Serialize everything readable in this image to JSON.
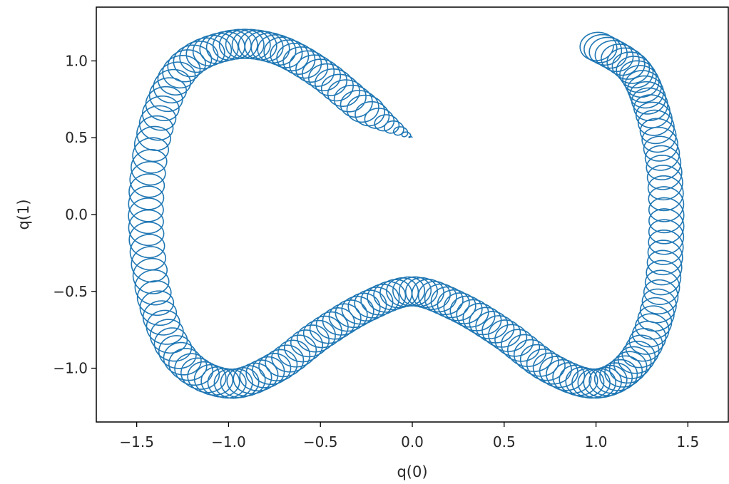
{
  "chart_data": {
    "type": "line",
    "title": "",
    "xlabel": "q(0)",
    "ylabel": "q(1)",
    "xlim": [
      -1.72,
      1.72
    ],
    "ylim": [
      -1.35,
      1.35
    ],
    "x_ticks": [
      -1.5,
      -1.0,
      -0.5,
      0.0,
      0.5,
      1.0,
      1.5
    ],
    "x_tick_labels": [
      "−1.5",
      "−1.0",
      "−0.5",
      "0.0",
      "0.5",
      "1.0",
      "1.5"
    ],
    "y_ticks": [
      -1.0,
      -0.5,
      0.0,
      0.5,
      1.0
    ],
    "y_tick_labels": [
      "−1.0",
      "−0.5",
      "0.0",
      "0.5",
      "1.0"
    ],
    "grid": false,
    "color": "#1f77b4",
    "series": [
      {
        "guiding_center_path": [
          [
            0.0,
            0.5
          ],
          [
            -0.25,
            0.68
          ],
          [
            -0.5,
            0.92
          ],
          [
            -0.75,
            1.08
          ],
          [
            -1.0,
            1.1
          ],
          [
            -1.25,
            0.95
          ],
          [
            -1.4,
            0.55
          ],
          [
            -1.45,
            0.0
          ],
          [
            -1.4,
            -0.55
          ],
          [
            -1.25,
            -0.95
          ],
          [
            -1.0,
            -1.1
          ],
          [
            -0.75,
            -1.0
          ],
          [
            -0.5,
            -0.78
          ],
          [
            -0.25,
            -0.6
          ],
          [
            0.0,
            -0.5
          ],
          [
            0.25,
            -0.6
          ],
          [
            0.5,
            -0.78
          ],
          [
            0.75,
            -1.0
          ],
          [
            1.0,
            -1.1
          ],
          [
            1.2,
            -0.97
          ],
          [
            1.33,
            -0.65
          ],
          [
            1.38,
            -0.2
          ],
          [
            1.37,
            0.3
          ],
          [
            1.3,
            0.7
          ],
          [
            1.2,
            0.95
          ],
          [
            1.0,
            1.1
          ]
        ],
        "loop_radius_x": 0.095,
        "loop_radius_y": 0.095
      }
    ]
  }
}
